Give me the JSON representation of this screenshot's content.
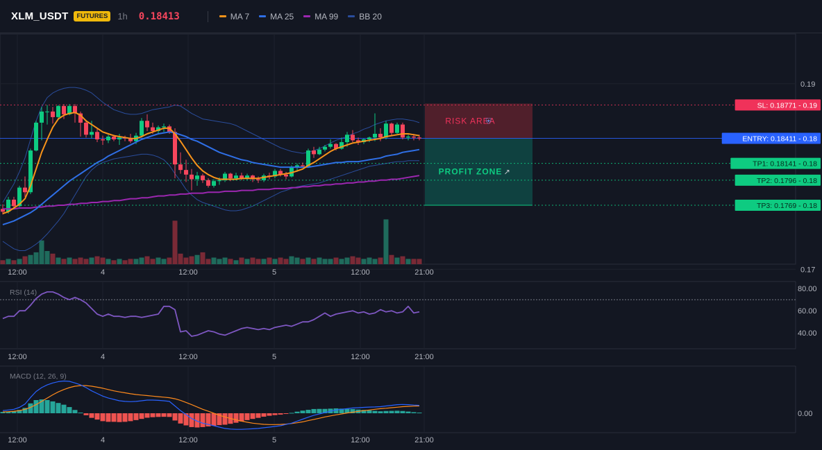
{
  "header": {
    "symbol": "XLM_USDT",
    "badge": "FUTURES",
    "timeframe": "1h",
    "price": "0.18413",
    "indicators": [
      {
        "label": "MA 7",
        "color": "#f7931a"
      },
      {
        "label": "MA 25",
        "color": "#2f6fe6"
      },
      {
        "label": "MA 99",
        "color": "#9c27b0"
      },
      {
        "label": "BB 20",
        "color": "#2a4d9c"
      }
    ]
  },
  "colors": {
    "up": "#0ecb81",
    "down": "#f6465d",
    "vol_up": "#1f6b5c",
    "vol_down": "#7a2a36",
    "rsi": "#7e57c2",
    "macd": "#2962ff",
    "signal": "#ff8a1c",
    "hist_up": "#26a69a",
    "hist_down": "#ef5350"
  },
  "x_ticks": [
    "12:00",
    "4",
    "12:00",
    "5",
    "12:00",
    "21:00"
  ],
  "panels": {
    "rsi_label": "RSI (14)",
    "macd_label": "MACD (12, 26, 9)"
  },
  "chart_data": {
    "type": "candlestick",
    "y_ticks": [
      "0.19",
      "0.17"
    ],
    "ylim": [
      0.1688,
      0.1946
    ],
    "candles": [
      [
        0.1765,
        0.177,
        0.1759,
        0.1762
      ],
      [
        0.1762,
        0.1778,
        0.176,
        0.1775
      ],
      [
        0.1775,
        0.1778,
        0.1765,
        0.1768
      ],
      [
        0.1768,
        0.179,
        0.1767,
        0.1788
      ],
      [
        0.1788,
        0.18,
        0.1778,
        0.1783
      ],
      [
        0.1783,
        0.183,
        0.1781,
        0.1828
      ],
      [
        0.1828,
        0.186,
        0.1827,
        0.1858
      ],
      [
        0.1858,
        0.1875,
        0.1839,
        0.187
      ],
      [
        0.187,
        0.1877,
        0.1856,
        0.187
      ],
      [
        0.187,
        0.1875,
        0.1857,
        0.1864
      ],
      [
        0.1864,
        0.1877,
        0.1862,
        0.1876
      ],
      [
        0.1876,
        0.1878,
        0.1862,
        0.1867
      ],
      [
        0.1867,
        0.1878,
        0.1866,
        0.1876
      ],
      [
        0.1876,
        0.1878,
        0.1858,
        0.1868
      ],
      [
        0.1868,
        0.187,
        0.1843,
        0.1858
      ],
      [
        0.1858,
        0.1861,
        0.1842,
        0.1845
      ],
      [
        0.1845,
        0.186,
        0.1841,
        0.1848
      ],
      [
        0.1848,
        0.1852,
        0.1837,
        0.184
      ],
      [
        0.184,
        0.1844,
        0.1834,
        0.1839
      ],
      [
        0.1839,
        0.1845,
        0.1836,
        0.1843
      ],
      [
        0.1843,
        0.1845,
        0.1838,
        0.184
      ],
      [
        0.184,
        0.1846,
        0.1834,
        0.1842
      ],
      [
        0.1842,
        0.1844,
        0.1838,
        0.1841
      ],
      [
        0.1841,
        0.1846,
        0.1836,
        0.1838
      ],
      [
        0.1838,
        0.1847,
        0.1835,
        0.1844
      ],
      [
        0.1844,
        0.1863,
        0.1842,
        0.186
      ],
      [
        0.186,
        0.1867,
        0.1849,
        0.1853
      ],
      [
        0.1853,
        0.1858,
        0.1846,
        0.1849
      ],
      [
        0.1849,
        0.1855,
        0.1846,
        0.1853
      ],
      [
        0.1853,
        0.1857,
        0.1848,
        0.1854
      ],
      [
        0.1854,
        0.1856,
        0.1846,
        0.1848
      ],
      [
        0.1848,
        0.1852,
        0.1798,
        0.1813
      ],
      [
        0.1813,
        0.1826,
        0.1803,
        0.1807
      ],
      [
        0.1807,
        0.1818,
        0.1794,
        0.1802
      ],
      [
        0.1802,
        0.1808,
        0.1785,
        0.1797
      ],
      [
        0.1797,
        0.1805,
        0.179,
        0.1801
      ],
      [
        0.1801,
        0.1803,
        0.1793,
        0.1796
      ],
      [
        0.1796,
        0.1798,
        0.1788,
        0.179
      ],
      [
        0.179,
        0.1797,
        0.1788,
        0.1795
      ],
      [
        0.1795,
        0.1799,
        0.1791,
        0.1796
      ],
      [
        0.1796,
        0.1805,
        0.1794,
        0.1803
      ],
      [
        0.1803,
        0.1804,
        0.1795,
        0.1798
      ],
      [
        0.1798,
        0.1804,
        0.1796,
        0.1801
      ],
      [
        0.1801,
        0.1804,
        0.1796,
        0.1798
      ],
      [
        0.1798,
        0.1803,
        0.1796,
        0.1801
      ],
      [
        0.1801,
        0.1802,
        0.1794,
        0.1797
      ],
      [
        0.1797,
        0.18,
        0.1793,
        0.1796
      ],
      [
        0.1796,
        0.1803,
        0.1794,
        0.1801
      ],
      [
        0.1801,
        0.1804,
        0.1797,
        0.18
      ],
      [
        0.18,
        0.1808,
        0.1798,
        0.1806
      ],
      [
        0.1806,
        0.1808,
        0.18,
        0.1802
      ],
      [
        0.1802,
        0.1805,
        0.1797,
        0.18
      ],
      [
        0.18,
        0.1812,
        0.1799,
        0.181
      ],
      [
        0.181,
        0.1814,
        0.1805,
        0.1812
      ],
      [
        0.1812,
        0.1815,
        0.181,
        0.1811
      ],
      [
        0.1811,
        0.183,
        0.181,
        0.1828
      ],
      [
        0.1828,
        0.1832,
        0.182,
        0.1824
      ],
      [
        0.1824,
        0.1832,
        0.1823,
        0.1829
      ],
      [
        0.1829,
        0.1834,
        0.1827,
        0.1832
      ],
      [
        0.1832,
        0.184,
        0.183,
        0.1835
      ],
      [
        0.1835,
        0.1836,
        0.1828,
        0.183
      ],
      [
        0.183,
        0.1842,
        0.1829,
        0.1837
      ],
      [
        0.1837,
        0.1848,
        0.1832,
        0.1845
      ],
      [
        0.1845,
        0.185,
        0.1837,
        0.1839
      ],
      [
        0.1839,
        0.1842,
        0.1834,
        0.1837
      ],
      [
        0.1837,
        0.1841,
        0.1835,
        0.184
      ],
      [
        0.184,
        0.1843,
        0.1837,
        0.1842
      ],
      [
        0.1842,
        0.1868,
        0.1838,
        0.1846
      ],
      [
        0.1846,
        0.1852,
        0.1838,
        0.1842
      ],
      [
        0.1842,
        0.186,
        0.184,
        0.1857
      ],
      [
        0.1857,
        0.1858,
        0.1844,
        0.1847
      ],
      [
        0.1847,
        0.1858,
        0.1846,
        0.1856
      ],
      [
        0.1856,
        0.1858,
        0.184,
        0.1842
      ],
      [
        0.1842,
        0.1845,
        0.1839,
        0.1843
      ],
      [
        0.1843,
        0.1846,
        0.1839,
        0.1842
      ],
      [
        0.1842,
        0.1845,
        0.1839,
        0.1841
      ]
    ],
    "volume": [
      3,
      4,
      3,
      4,
      6,
      7,
      9,
      18,
      10,
      8,
      5,
      4,
      5,
      4,
      5,
      4,
      5,
      6,
      5,
      4,
      3,
      4,
      3,
      4,
      4,
      5,
      6,
      4,
      5,
      4,
      5,
      33,
      8,
      5,
      6,
      7,
      9,
      4,
      5,
      4,
      5,
      4,
      3,
      5,
      4,
      5,
      4,
      4,
      5,
      4,
      5,
      4,
      6,
      5,
      4,
      5,
      4,
      5,
      4,
      4,
      5,
      4,
      5,
      6,
      5,
      4,
      5,
      4,
      5,
      34,
      7,
      5,
      6,
      4,
      4,
      4
    ],
    "ma7": [
      0.176,
      0.1762,
      0.1766,
      0.177,
      0.1776,
      0.179,
      0.1808,
      0.1826,
      0.184,
      0.1853,
      0.1862,
      0.1866,
      0.1868,
      0.1869,
      0.1866,
      0.186,
      0.1856,
      0.1852,
      0.1848,
      0.1846,
      0.1844,
      0.1843,
      0.1842,
      0.1841,
      0.1841,
      0.1843,
      0.1846,
      0.1848,
      0.185,
      0.1852,
      0.1852,
      0.1846,
      0.1838,
      0.1829,
      0.182,
      0.1812,
      0.1806,
      0.1802,
      0.1799,
      0.1797,
      0.1797,
      0.1797,
      0.1797,
      0.1798,
      0.1798,
      0.1798,
      0.1798,
      0.1799,
      0.18,
      0.1801,
      0.1802,
      0.1803,
      0.1804,
      0.1806,
      0.1808,
      0.1812,
      0.1815,
      0.1819,
      0.1823,
      0.1827,
      0.183,
      0.1832,
      0.1834,
      0.1836,
      0.1837,
      0.1838,
      0.1839,
      0.184,
      0.1841,
      0.1843,
      0.1844,
      0.1845,
      0.1846,
      0.1846,
      0.1845,
      0.1844
    ],
    "ma25": [
      0.1748,
      0.175,
      0.1752,
      0.1755,
      0.1758,
      0.1761,
      0.1765,
      0.177,
      0.1775,
      0.178,
      0.1785,
      0.179,
      0.1795,
      0.1799,
      0.1803,
      0.1807,
      0.1811,
      0.1815,
      0.1818,
      0.1822,
      0.1825,
      0.1828,
      0.1831,
      0.1834,
      0.1837,
      0.184,
      0.1842,
      0.1844,
      0.1846,
      0.1847,
      0.1848,
      0.1847,
      0.1845,
      0.1843,
      0.184,
      0.1838,
      0.1835,
      0.1832,
      0.1829,
      0.1826,
      0.1824,
      0.1822,
      0.182,
      0.1818,
      0.1817,
      0.1815,
      0.1814,
      0.1813,
      0.1812,
      0.1811,
      0.181,
      0.181,
      0.181,
      0.181,
      0.181,
      0.181,
      0.1811,
      0.1812,
      0.1813,
      0.1814,
      0.1815,
      0.1815,
      0.1816,
      0.1816,
      0.1816,
      0.1817,
      0.1818,
      0.1819,
      0.182,
      0.1822,
      0.1823,
      0.1824,
      0.1826,
      0.1827,
      0.1828,
      0.1829
    ],
    "ma99": [
      0.1765,
      0.1765,
      0.1765,
      0.1766,
      0.1766,
      0.1766,
      0.1767,
      0.1767,
      0.1768,
      0.1768,
      0.1769,
      0.1769,
      0.177,
      0.177,
      0.1771,
      0.1771,
      0.1772,
      0.1772,
      0.1773,
      0.1773,
      0.1774,
      0.1774,
      0.1775,
      0.1776,
      0.1776,
      0.1777,
      0.1777,
      0.1778,
      0.1779,
      0.1779,
      0.178,
      0.178,
      0.1781,
      0.1781,
      0.1782,
      0.1782,
      0.1782,
      0.1783,
      0.1783,
      0.1783,
      0.1784,
      0.1784,
      0.1784,
      0.1785,
      0.1785,
      0.1785,
      0.1786,
      0.1786,
      0.1786,
      0.1787,
      0.1787,
      0.1787,
      0.1788,
      0.1788,
      0.1789,
      0.1789,
      0.179,
      0.179,
      0.1791,
      0.1791,
      0.1792,
      0.1792,
      0.1793,
      0.1793,
      0.1794,
      0.1794,
      0.1795,
      0.1795,
      0.1796,
      0.1796,
      0.1797,
      0.1797,
      0.1798,
      0.1799,
      0.18,
      0.1801
    ],
    "bb_upper": [
      0.1772,
      0.1782,
      0.1792,
      0.1805,
      0.182,
      0.184,
      0.186,
      0.1875,
      0.1885,
      0.189,
      0.1893,
      0.1895,
      0.1896,
      0.1896,
      0.1895,
      0.1893,
      0.189,
      0.1885,
      0.188,
      0.1876,
      0.1872,
      0.187,
      0.1868,
      0.1867,
      0.1867,
      0.1868,
      0.187,
      0.1872,
      0.1873,
      0.1874,
      0.1875,
      0.1877,
      0.1876,
      0.1872,
      0.1868,
      0.1865,
      0.1862,
      0.1861,
      0.186,
      0.1859,
      0.1858,
      0.1857,
      0.1855,
      0.1852,
      0.1849,
      0.1846,
      0.1843,
      0.184,
      0.1837,
      0.1834,
      0.1831,
      0.1829,
      0.1827,
      0.1826,
      0.1825,
      0.1826,
      0.1828,
      0.183,
      0.1833,
      0.1836,
      0.1839,
      0.1841,
      0.1843,
      0.1846,
      0.1848,
      0.1851,
      0.1853,
      0.1856,
      0.1858,
      0.186,
      0.1861,
      0.1862,
      0.1862,
      0.1861,
      0.186,
      0.1858
    ],
    "bb_lower": [
      0.173,
      0.1726,
      0.1722,
      0.172,
      0.172,
      0.1723,
      0.1727,
      0.1732,
      0.1738,
      0.1745,
      0.1752,
      0.176,
      0.177,
      0.178,
      0.179,
      0.18,
      0.1807,
      0.1812,
      0.1815,
      0.1817,
      0.1819,
      0.182,
      0.1821,
      0.1822,
      0.1823,
      0.1824,
      0.1824,
      0.1823,
      0.1821,
      0.1818,
      0.1812,
      0.1803,
      0.1795,
      0.1786,
      0.178,
      0.1775,
      0.1772,
      0.177,
      0.1768,
      0.1766,
      0.1764,
      0.1763,
      0.1763,
      0.1764,
      0.1766,
      0.1768,
      0.1771,
      0.1774,
      0.1777,
      0.178,
      0.1783,
      0.1785,
      0.1787,
      0.1789,
      0.179,
      0.1791,
      0.1792,
      0.1793,
      0.1795,
      0.1797,
      0.1799,
      0.1801,
      0.1803,
      0.1805,
      0.1807,
      0.1809,
      0.1811,
      0.1812,
      0.1813,
      0.1814,
      0.1815,
      0.1816,
      0.1816,
      0.1817,
      0.1817,
      0.1817
    ],
    "levels": [
      {
        "name": "sl",
        "label": "SL: 0.18771 - 0.19",
        "price": 0.18771,
        "color": "#f0325a"
      },
      {
        "name": "entry",
        "label": "ENTRY: 0.18411 - 0.18",
        "price": 0.18411,
        "color": "#2962ff"
      },
      {
        "name": "tp1",
        "label": "TP1: 0.18141 - 0.18",
        "price": 0.18141,
        "color": "#0ecb81"
      },
      {
        "name": "tp2",
        "label": "TP2: 0.1796 - 0.18",
        "price": 0.1796,
        "color": "#0ecb81"
      },
      {
        "name": "tp3",
        "label": "TP3: 0.1769 - 0.18",
        "price": 0.1769,
        "color": "#0ecb81"
      }
    ],
    "zones": {
      "risk": "RISK AREA",
      "profit": "PROFIT ZONE"
    },
    "rsi": [
      53,
      55,
      55,
      60,
      60,
      65,
      71,
      75,
      77,
      77,
      75,
      72,
      70,
      72,
      70,
      67,
      62,
      57,
      55,
      57,
      55,
      55,
      54,
      55,
      55,
      54,
      55,
      56,
      57,
      64,
      64,
      61,
      41,
      42,
      37,
      38,
      40,
      42,
      41,
      39,
      38,
      40,
      42,
      44,
      45,
      44,
      43,
      44,
      43,
      45,
      46,
      47,
      46,
      48,
      50,
      50,
      52,
      55,
      58,
      55,
      57,
      58,
      59,
      60,
      58,
      59,
      57,
      58,
      61,
      59,
      60,
      58,
      59,
      64,
      58,
      59
    ],
    "rsi_ticks": [
      "80.00",
      "60.00",
      "40.00"
    ],
    "rsi_ylim": [
      30,
      87
    ],
    "rsi_overbought": 70,
    "macd_line": [
      0.2,
      0.25,
      0.3,
      0.45,
      0.7,
      1.2,
      1.65,
      1.95,
      2.15,
      2.3,
      2.4,
      2.45,
      2.42,
      2.3,
      2.15,
      1.95,
      1.7,
      1.5,
      1.3,
      1.15,
      1.05,
      0.95,
      0.9,
      0.88,
      0.9,
      0.95,
      1.0,
      1.0,
      0.98,
      0.95,
      0.9,
      0.55,
      0.2,
      -0.1,
      -0.4,
      -0.6,
      -0.75,
      -0.85,
      -0.95,
      -1.05,
      -1.15,
      -1.2,
      -1.22,
      -1.22,
      -1.2,
      -1.18,
      -1.15,
      -1.1,
      -1.05,
      -1.0,
      -0.95,
      -0.85,
      -0.75,
      -0.6,
      -0.45,
      -0.3,
      -0.15,
      -0.05,
      0.05,
      0.15,
      0.25,
      0.3,
      0.35,
      0.4,
      0.42,
      0.45,
      0.47,
      0.48,
      0.5,
      0.55,
      0.6,
      0.65,
      0.67,
      0.65,
      0.62,
      0.6
    ],
    "signal_line": [
      0.1,
      0.12,
      0.15,
      0.2,
      0.3,
      0.45,
      0.65,
      0.9,
      1.15,
      1.4,
      1.62,
      1.8,
      1.95,
      2.05,
      2.1,
      2.1,
      2.05,
      1.98,
      1.9,
      1.8,
      1.7,
      1.62,
      1.55,
      1.48,
      1.42,
      1.38,
      1.34,
      1.3,
      1.26,
      1.22,
      1.18,
      1.1,
      0.98,
      0.82,
      0.65,
      0.48,
      0.3,
      0.15,
      0.0,
      -0.15,
      -0.28,
      -0.4,
      -0.5,
      -0.6,
      -0.68,
      -0.75,
      -0.8,
      -0.84,
      -0.86,
      -0.86,
      -0.85,
      -0.82,
      -0.78,
      -0.72,
      -0.65,
      -0.56,
      -0.47,
      -0.38,
      -0.28,
      -0.2,
      -0.12,
      -0.05,
      0.02,
      0.08,
      0.14,
      0.2,
      0.25,
      0.3,
      0.35,
      0.38,
      0.42,
      0.46,
      0.5,
      0.52,
      0.54,
      0.55
    ],
    "macd_hist": [
      0.1,
      0.13,
      0.15,
      0.25,
      0.4,
      0.75,
      1.0,
      1.05,
      1.0,
      0.9,
      0.78,
      0.65,
      0.47,
      0.25,
      0.05,
      -0.15,
      -0.35,
      -0.48,
      -0.6,
      -0.65,
      -0.65,
      -0.67,
      -0.65,
      -0.6,
      -0.52,
      -0.43,
      -0.34,
      -0.3,
      -0.28,
      -0.27,
      -0.28,
      -0.55,
      -0.78,
      -0.92,
      -1.05,
      -1.08,
      -1.05,
      -1.0,
      -0.95,
      -0.9,
      -0.87,
      -0.8,
      -0.72,
      -0.62,
      -0.52,
      -0.43,
      -0.35,
      -0.26,
      -0.19,
      -0.14,
      -0.1,
      -0.03,
      0.03,
      0.12,
      0.2,
      0.26,
      0.32,
      0.33,
      0.33,
      0.35,
      0.37,
      0.35,
      0.33,
      0.32,
      0.28,
      0.25,
      0.22,
      0.18,
      0.15,
      0.17,
      0.18,
      0.19,
      0.17,
      0.13,
      0.08,
      0.05
    ],
    "macd_ticks": [
      "0.00"
    ],
    "macd_ylim": [
      -1.6,
      3.2
    ]
  }
}
